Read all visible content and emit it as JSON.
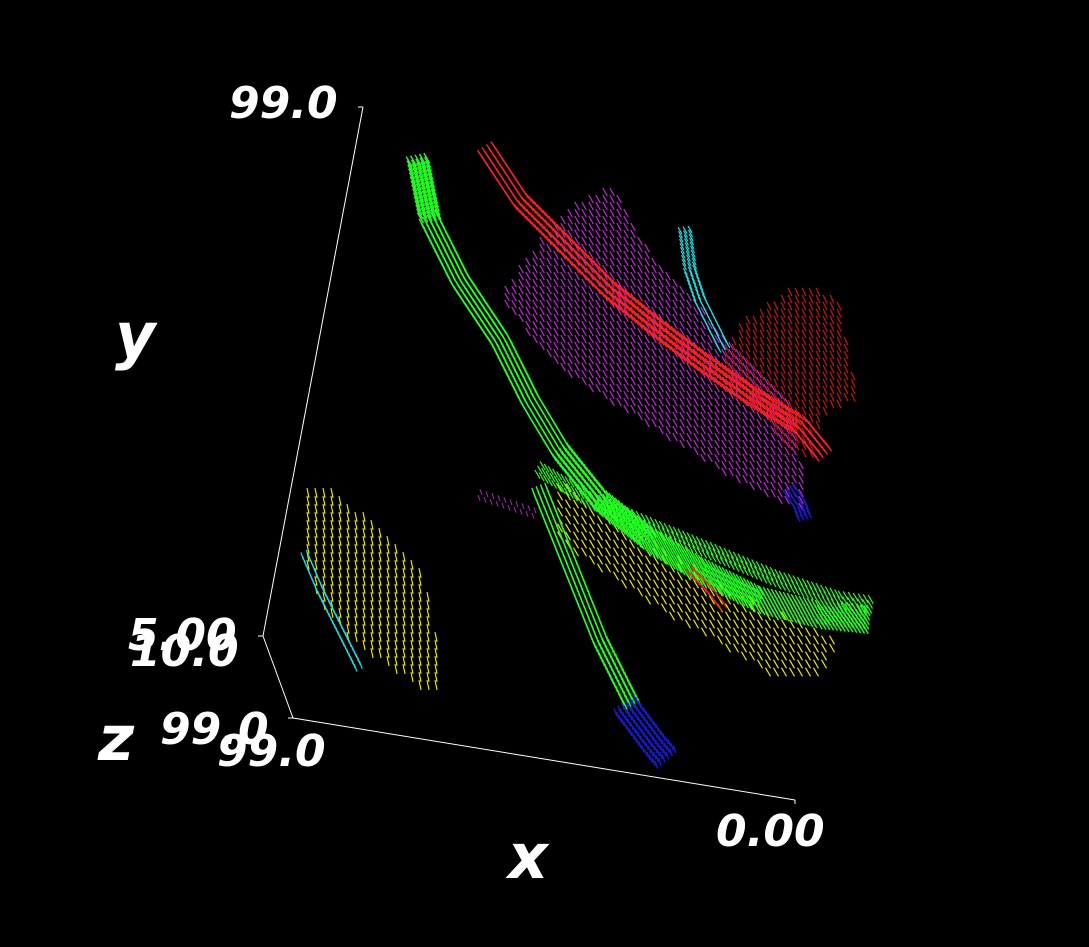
{
  "chart_data": {
    "type": "scatter",
    "render": "3d-volume-glyphs",
    "background": "#000000",
    "axis_color": "#ffffff",
    "axes": {
      "x": {
        "label": "x",
        "ticks": [
          "0.00",
          "99.0"
        ]
      },
      "y": {
        "label": "y",
        "ticks": [
          "5.00",
          "99.0"
        ]
      },
      "z": {
        "label": "z",
        "ticks": [
          "10.0",
          "99.0"
        ]
      }
    },
    "palette": {
      "green": "#22ff22",
      "red": "#ff2020",
      "magenta": "#c026d3",
      "yellow": "#e6e600",
      "cyan": "#19e0e6",
      "blue": "#1a1acc",
      "dark_red": "#c81414",
      "mixed": "#9b2fb0"
    }
  }
}
